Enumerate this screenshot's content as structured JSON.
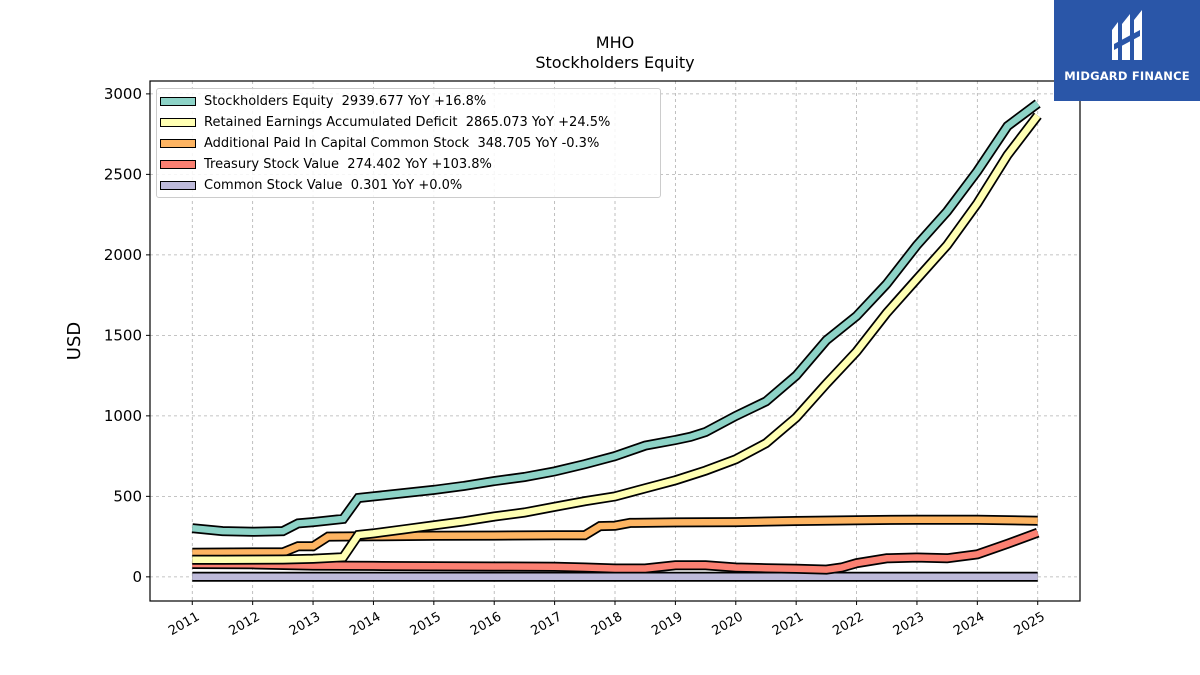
{
  "chart_data": {
    "type": "line",
    "title": "MHO",
    "subtitle": "Stockholders  Equity",
    "ylabel": "USD",
    "xlabel": "",
    "ylim": [
      -150,
      3080
    ],
    "xlim": [
      2010.3,
      2025.7
    ],
    "yticks": [
      0,
      500,
      1000,
      1500,
      2000,
      2500,
      3000
    ],
    "xticks": [
      "2011",
      "2012",
      "2013",
      "2014",
      "2015",
      "2016",
      "2017",
      "2018",
      "2019",
      "2020",
      "2021",
      "2022",
      "2023",
      "2024",
      "2025"
    ],
    "grid": true,
    "legend_position": "top-left",
    "series": [
      {
        "name": "Stockholders Equity  2939.677 YoY +16.8%",
        "color": "#8dd3c7",
        "points": [
          [
            2011.0,
            302
          ],
          [
            2011.5,
            284
          ],
          [
            2012.0,
            280
          ],
          [
            2012.5,
            284
          ],
          [
            2012.75,
            332
          ],
          [
            2013.0,
            340
          ],
          [
            2013.5,
            360
          ],
          [
            2013.75,
            490
          ],
          [
            2014.0,
            500
          ],
          [
            2014.5,
            520
          ],
          [
            2015.0,
            540
          ],
          [
            2015.5,
            565
          ],
          [
            2016.0,
            595
          ],
          [
            2016.5,
            620
          ],
          [
            2017.0,
            655
          ],
          [
            2017.5,
            700
          ],
          [
            2018.0,
            750
          ],
          [
            2018.5,
            815
          ],
          [
            2019.0,
            850
          ],
          [
            2019.25,
            870
          ],
          [
            2019.5,
            900
          ],
          [
            2020.0,
            1000
          ],
          [
            2020.5,
            1090
          ],
          [
            2021.0,
            1250
          ],
          [
            2021.5,
            1470
          ],
          [
            2022.0,
            1620
          ],
          [
            2022.5,
            1820
          ],
          [
            2023.0,
            2060
          ],
          [
            2023.5,
            2270
          ],
          [
            2024.0,
            2520
          ],
          [
            2024.5,
            2800
          ],
          [
            2025.0,
            2940
          ]
        ]
      },
      {
        "name": "Retained Earnings Accumulated Deficit  2865.073 YoY +24.5%",
        "color": "#ffffb3",
        "points": [
          [
            2011.0,
            106
          ],
          [
            2011.5,
            106
          ],
          [
            2012.0,
            107
          ],
          [
            2012.5,
            108
          ],
          [
            2013.0,
            112
          ],
          [
            2013.5,
            122
          ],
          [
            2013.75,
            260
          ],
          [
            2014.0,
            270
          ],
          [
            2014.5,
            295
          ],
          [
            2015.0,
            320
          ],
          [
            2015.5,
            345
          ],
          [
            2016.0,
            375
          ],
          [
            2016.5,
            400
          ],
          [
            2017.0,
            435
          ],
          [
            2017.5,
            470
          ],
          [
            2018.0,
            500
          ],
          [
            2018.5,
            550
          ],
          [
            2019.0,
            600
          ],
          [
            2019.5,
            660
          ],
          [
            2020.0,
            730
          ],
          [
            2020.5,
            830
          ],
          [
            2021.0,
            990
          ],
          [
            2021.5,
            1200
          ],
          [
            2022.0,
            1400
          ],
          [
            2022.5,
            1640
          ],
          [
            2023.0,
            1850
          ],
          [
            2023.5,
            2060
          ],
          [
            2024.0,
            2320
          ],
          [
            2024.5,
            2620
          ],
          [
            2025.0,
            2865
          ]
        ]
      },
      {
        "name": "Additional Paid In Capital Common Stock  348.705 YoY -0.3%",
        "color": "#fdb462",
        "points": [
          [
            2011.0,
            150
          ],
          [
            2012.0,
            152
          ],
          [
            2012.5,
            152
          ],
          [
            2012.75,
            190
          ],
          [
            2013.0,
            190
          ],
          [
            2013.25,
            250
          ],
          [
            2014.0,
            252
          ],
          [
            2015.0,
            255
          ],
          [
            2016.0,
            256
          ],
          [
            2017.0,
            258
          ],
          [
            2017.5,
            258
          ],
          [
            2017.75,
            315
          ],
          [
            2018.0,
            318
          ],
          [
            2018.25,
            335
          ],
          [
            2019.0,
            338
          ],
          [
            2020.0,
            340
          ],
          [
            2021.0,
            347
          ],
          [
            2022.0,
            352
          ],
          [
            2023.0,
            355
          ],
          [
            2024.0,
            355
          ],
          [
            2025.0,
            349
          ]
        ]
      },
      {
        "name": "Treasury Stock Value  274.402 YoY +103.8%",
        "color": "#fb8072",
        "points": [
          [
            2011.0,
            80
          ],
          [
            2012.0,
            78
          ],
          [
            2013.0,
            70
          ],
          [
            2014.0,
            68
          ],
          [
            2015.0,
            66
          ],
          [
            2016.0,
            64
          ],
          [
            2017.0,
            63
          ],
          [
            2017.5,
            58
          ],
          [
            2018.0,
            52
          ],
          [
            2018.5,
            52
          ],
          [
            2019.0,
            72
          ],
          [
            2019.5,
            72
          ],
          [
            2020.0,
            58
          ],
          [
            2020.5,
            54
          ],
          [
            2021.0,
            50
          ],
          [
            2021.5,
            45
          ],
          [
            2021.75,
            58
          ],
          [
            2022.0,
            85
          ],
          [
            2022.5,
            115
          ],
          [
            2023.0,
            120
          ],
          [
            2023.5,
            115
          ],
          [
            2024.0,
            140
          ],
          [
            2024.5,
            205
          ],
          [
            2025.0,
            274
          ]
        ]
      },
      {
        "name": "Common Stock Value  0.301 YoY +0.0%",
        "color": "#bebada",
        "points": [
          [
            2011.0,
            0.301
          ],
          [
            2025.0,
            0.301
          ]
        ]
      }
    ]
  },
  "logo": {
    "text": "MIDGARD FINANCE"
  }
}
